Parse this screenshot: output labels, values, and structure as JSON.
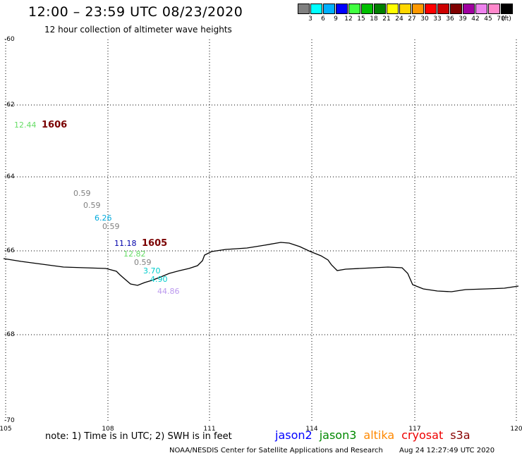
{
  "header": {
    "title": "12:00 – 23:59 UTC 08/23/2020",
    "subtitle": "12 hour collection of altimeter wave heights"
  },
  "legend": {
    "colors": [
      "#808080",
      "#00ffff",
      "#00b0ff",
      "#0000ff",
      "#40ff40",
      "#00c000",
      "#008000",
      "#ffff00",
      "#ffd700",
      "#ff9900",
      "#ff0000",
      "#cc0000",
      "#800000",
      "#a000a0",
      "#ee82ee",
      "#ff88cc",
      "#000000"
    ],
    "labels": [
      "3",
      "6",
      "9",
      "12",
      "15",
      "18",
      "21",
      "24",
      "27",
      "30",
      "33",
      "36",
      "39",
      "42",
      "45",
      "70",
      "(ft)"
    ]
  },
  "axes": {
    "lat_labels": [
      "-60",
      "-62",
      "-64",
      "-66",
      "-68",
      "-70"
    ],
    "lon_labels": [
      "105",
      "108",
      "111",
      "114",
      "117",
      "120"
    ]
  },
  "observations": [
    {
      "text": "12.44",
      "color": "#66dd66"
    },
    {
      "text": "0.59",
      "color": "#808080"
    },
    {
      "text": "0.59",
      "color": "#808080"
    },
    {
      "text": "6.26",
      "color": "#00aadd"
    },
    {
      "text": "0.59",
      "color": "#808080"
    },
    {
      "text": "11.18",
      "color": "#0000aa"
    },
    {
      "text": "12.82",
      "color": "#66dd66"
    },
    {
      "text": "0.59",
      "color": "#808080"
    },
    {
      "text": "3.70",
      "color": "#00cccc"
    },
    {
      "text": "4.90",
      "color": "#00cccc"
    },
    {
      "text": "44.86",
      "color": "#bb99ee"
    }
  ],
  "cycle_labels": [
    "1606",
    "1605"
  ],
  "footer": {
    "note": "note: 1) Time is in UTC; 2) SWH is in feet",
    "satellites": [
      {
        "name": "jason2",
        "color": "#0000ff"
      },
      {
        "name": "jason3",
        "color": "#008800"
      },
      {
        "name": "altika",
        "color": "#ff8800"
      },
      {
        "name": "cryosat",
        "color": "#ee0000"
      },
      {
        "name": "s3a",
        "color": "#880000"
      }
    ],
    "credit": "NOAA/NESDIS Center for Satellite Applications and Research",
    "timestamp": "Aug 24 12:27:49 UTC 2020"
  }
}
